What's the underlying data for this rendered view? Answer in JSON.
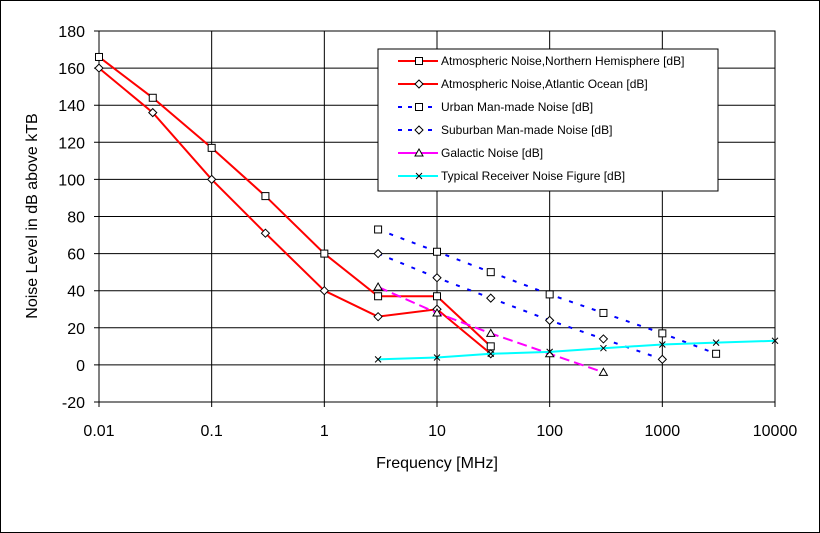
{
  "chart_data": {
    "type": "line",
    "xlabel": "Frequency [MHz]",
    "ylabel": "Noise Level in dB above kTB",
    "xscale": "log",
    "xlim": [
      0.01,
      10000
    ],
    "ylim": [
      -20,
      180
    ],
    "xticks": [
      "0.01",
      "0.1",
      "1",
      "10",
      "100",
      "1000",
      "10000"
    ],
    "xtick_values": [
      0.01,
      0.1,
      1,
      10,
      100,
      1000,
      10000
    ],
    "yticks": [
      "-20",
      "0",
      "20",
      "40",
      "60",
      "80",
      "100",
      "120",
      "140",
      "160",
      "180"
    ],
    "grid": true,
    "legend_position": "top-right",
    "series": [
      {
        "name": "Atmospheric  Noise,Northern Hemisphere [dB]",
        "color": "#ff0000",
        "dash": "solid",
        "marker": "square",
        "x": [
          0.01,
          0.03,
          0.1,
          0.3,
          1,
          3,
          10,
          30
        ],
        "y": [
          166,
          144,
          117,
          91,
          60,
          37,
          37,
          10
        ]
      },
      {
        "name": "Atmospheric Noise,Atlantic Ocean [dB]",
        "color": "#ff0000",
        "dash": "solid",
        "marker": "diamond",
        "x": [
          0.01,
          0.03,
          0.1,
          0.3,
          1,
          3,
          10,
          30
        ],
        "y": [
          160,
          136,
          100,
          71,
          40,
          26,
          30,
          6
        ]
      },
      {
        "name": "Urban Man-made Noise [dB]",
        "color": "#0000ff",
        "dash": "dotted",
        "marker": "square",
        "x": [
          3,
          10,
          30,
          100,
          300,
          1000,
          3000
        ],
        "y": [
          73,
          61,
          50,
          38,
          28,
          17,
          6
        ]
      },
      {
        "name": "Suburban Man-made Noise [dB]",
        "color": "#0000ff",
        "dash": "dotted",
        "marker": "diamond",
        "x": [
          3,
          10,
          30,
          100,
          300,
          1000
        ],
        "y": [
          60,
          47,
          36,
          24,
          14,
          3
        ]
      },
      {
        "name": "Galactic Noise [dB]",
        "color": "#ff00ff",
        "dash": "dashed",
        "marker": "triangle",
        "x": [
          3,
          10,
          30,
          100,
          300
        ],
        "y": [
          42,
          28,
          17,
          6,
          -4
        ]
      },
      {
        "name": "Typical Receiver Noise Figure [dB]",
        "color": "#00ffff",
        "dash": "solid",
        "marker": "x",
        "x": [
          3,
          10,
          30,
          100,
          300,
          1000,
          3000,
          10000
        ],
        "y": [
          3,
          4,
          6,
          7,
          9,
          11,
          12,
          13
        ]
      }
    ]
  }
}
